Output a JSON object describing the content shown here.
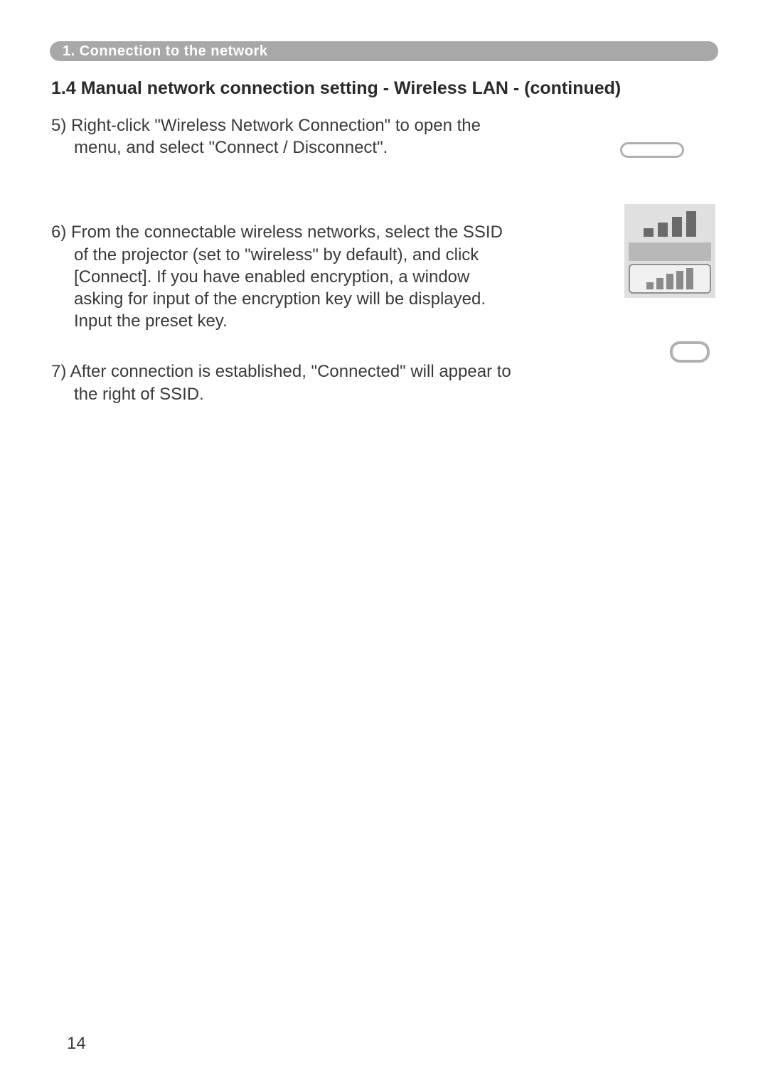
{
  "chapter": {
    "label": "1. Connection to the network"
  },
  "section": {
    "title": "1.4 Manual network connection setting - Wireless LAN - (continued)"
  },
  "steps": {
    "s5": "5) Right-click \"Wireless Network Connection\" to open the menu, and select \"Connect / Disconnect\".",
    "s6": "6) From the connectable wireless networks, select the SSID of the projector (set to \"wireless\" by default), and click [Connect]. If you have enabled encryption, a window asking for input of the encryption key will be displayed. Input the preset key.",
    "s7": "7) After connection is established, \"Connected\" will appear to the right of SSID."
  },
  "page_number": "14",
  "colors": {
    "chapter_bar_bg": "#a8a8a8",
    "chapter_bar_text": "#ffffff",
    "body_text": "#3a3a3a",
    "page_bg": "#ffffff",
    "shape_border": "#b0b0b0",
    "icon_bg": "#e0e0e0"
  },
  "typography": {
    "body_font_size": 24,
    "section_title_size": 25,
    "chapter_bar_size": 20,
    "page_number_size": 24
  }
}
